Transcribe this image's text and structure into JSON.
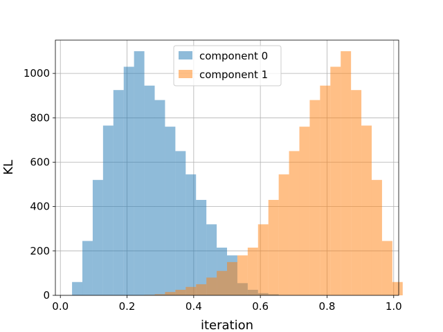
{
  "chart_data": {
    "type": "bar",
    "title": "",
    "xlabel": "iteration",
    "ylabel": "KL",
    "xlim": [
      -0.015,
      1.015
    ],
    "ylim": [
      0,
      1150
    ],
    "xticks": [
      0.0,
      0.2,
      0.4,
      0.6,
      0.8,
      1.0
    ],
    "xtick_labels": [
      "0.0",
      "0.2",
      "0.4",
      "0.6",
      "0.8",
      "1.0"
    ],
    "yticks": [
      0,
      200,
      400,
      600,
      800,
      1000
    ],
    "ytick_labels": [
      "0",
      "200",
      "400",
      "600",
      "800",
      "1000"
    ],
    "grid": true,
    "legend_position": "top-center",
    "series": [
      {
        "name": "component 0",
        "color": "#1f77b4",
        "alpha": 0.5,
        "bin_start": 0.035,
        "bin_width": 0.031,
        "values": [
          60,
          245,
          520,
          765,
          925,
          1030,
          1100,
          945,
          880,
          760,
          650,
          545,
          430,
          320,
          215,
          180,
          55,
          25,
          10,
          5
        ]
      },
      {
        "name": "component 1",
        "color": "#ff7f0e",
        "alpha": 0.5,
        "bin_start": 0.035,
        "bin_width": 0.031,
        "values": [
          0,
          0,
          0,
          0,
          0,
          0,
          0,
          2,
          5,
          15,
          25,
          38,
          50,
          80,
          110,
          150,
          180,
          215,
          320,
          430,
          545,
          650,
          760,
          880,
          945,
          1030,
          1100,
          925,
          765,
          520,
          245,
          60
        ]
      }
    ]
  }
}
